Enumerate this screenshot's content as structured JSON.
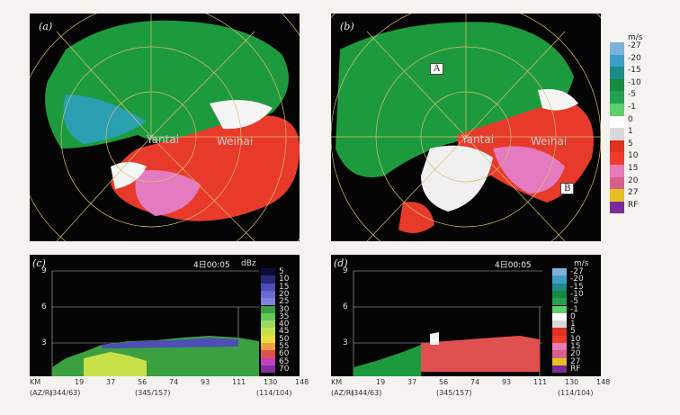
{
  "panels": {
    "a": {
      "label": "(a)",
      "city1": "Yantai",
      "city2": "Weihai"
    },
    "b": {
      "label": "(b)",
      "city1": "Yantai",
      "city2": "Weihai",
      "marker_a": "A",
      "marker_b": "B"
    },
    "c": {
      "label": "(c)",
      "time": "4日00:05",
      "unit": "dBz",
      "legend_values": [
        "5",
        "10",
        "15",
        "20",
        "25",
        "30",
        "35",
        "40",
        "45",
        "50",
        "55",
        "60",
        "65",
        "70"
      ]
    },
    "d": {
      "label": "(d)",
      "time": "4日00:05",
      "unit": "m/s",
      "legend_values": [
        "-27",
        "-20",
        "-15",
        "-10",
        "-5",
        "-1",
        "0",
        "1",
        "5",
        "10",
        "15",
        "20",
        "27",
        "RF"
      ]
    }
  },
  "velocity_legend": {
    "unit": "m/s",
    "values": [
      "-27",
      "-20",
      "-15",
      "-10",
      "-5",
      "-1",
      "0",
      "1",
      "5",
      "10",
      "15",
      "20",
      "27",
      "RF"
    ],
    "colors": [
      "#7ab3da",
      "#3f9ec9",
      "#1f8a8a",
      "#178a3e",
      "#23a050",
      "#5ecf6a",
      "#ffffff",
      "#d8d8d8",
      "#e03020",
      "#f03c2c",
      "#e87ab8",
      "#d6608c",
      "#e8c020",
      "#7b2a9a"
    ]
  },
  "reflectivity_colors": [
    "#0c0c3c",
    "#2a2a7a",
    "#4e4eb4",
    "#6a6ad0",
    "#8080e0",
    "#3aa040",
    "#62c85a",
    "#9ad860",
    "#c8e048",
    "#e8e040",
    "#f0a040",
    "#e05050",
    "#c040c0",
    "#8030a0"
  ],
  "cross_section": {
    "y_ticks": [
      "9",
      "6",
      "3"
    ],
    "km_label": "KM",
    "az_label": "(AZ/R)",
    "x_ticks": [
      "19",
      "37",
      "56",
      "74",
      "93",
      "111",
      "130",
      "148"
    ],
    "az_marks": [
      "(344/63)",
      "(345/157)",
      "(114/104)"
    ]
  }
}
